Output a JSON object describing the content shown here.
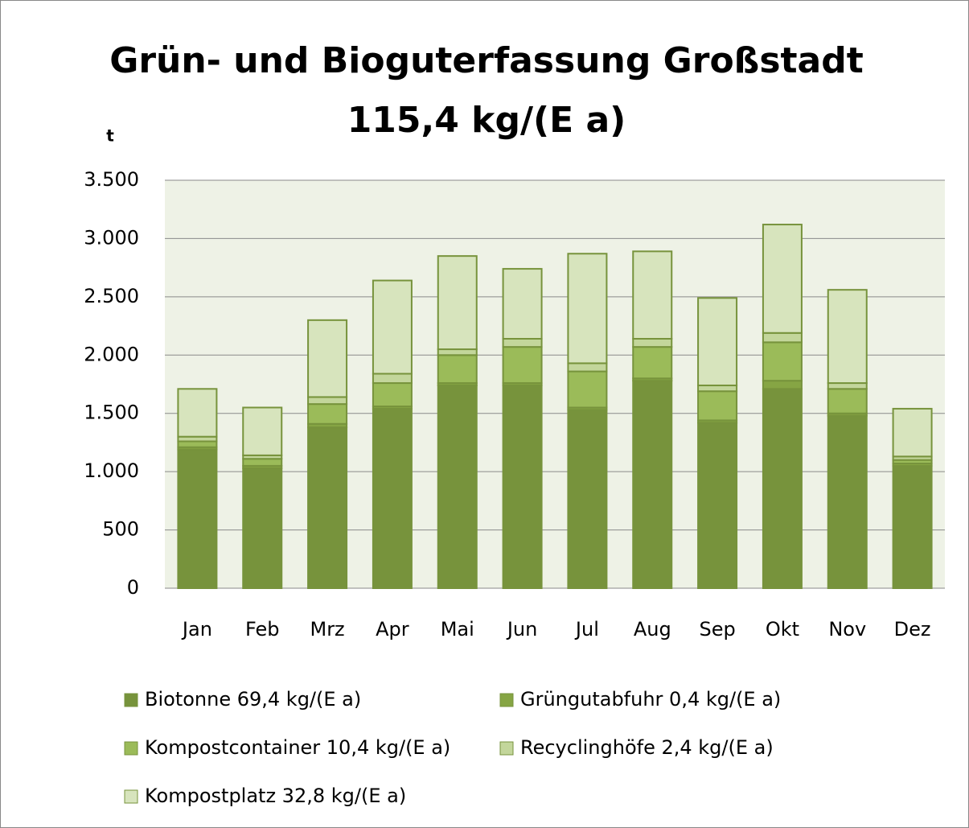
{
  "chart_data": {
    "type": "stacked_bar",
    "title": "Grün- und Bioguterfassung Großstadt",
    "subtitle": "115,4 kg/(E a)",
    "y_label": "t",
    "categories": [
      "Jan",
      "Feb",
      "Mrz",
      "Apr",
      "Mai",
      "Jun",
      "Jul",
      "Aug",
      "Sep",
      "Okt",
      "Nov",
      "Dez"
    ],
    "series": [
      {
        "name": "Biotonne 69,4 kg/(E a)",
        "color": "#77933c",
        "values": [
          1190,
          1030,
          1380,
          1540,
          1740,
          1740,
          1530,
          1780,
          1420,
          1710,
          1480,
          1050
        ]
      },
      {
        "name": "Grüngutabfuhr 0,4 kg/(E a)",
        "color": "#86a544",
        "values": [
          20,
          20,
          30,
          20,
          20,
          20,
          20,
          20,
          20,
          70,
          20,
          20
        ]
      },
      {
        "name": "Kompostcontainer 10,4 kg/(E a)",
        "color": "#9bbb59",
        "values": [
          50,
          60,
          170,
          200,
          240,
          310,
          310,
          270,
          250,
          330,
          210,
          30
        ]
      },
      {
        "name": "Recyclinghöfe 2,4 kg/(E a)",
        "color": "#c3d69b",
        "values": [
          40,
          30,
          60,
          80,
          50,
          70,
          70,
          70,
          50,
          80,
          50,
          30
        ]
      },
      {
        "name": "Kompostplatz 32,8 kg/(E a)",
        "color": "#d7e4bd",
        "values": [
          410,
          410,
          660,
          800,
          800,
          600,
          940,
          750,
          750,
          930,
          800,
          410
        ]
      }
    ],
    "ylim": [
      0,
      3500
    ],
    "yticks": [
      0,
      500,
      {
        "value": 1000,
        "label": "1.000"
      },
      {
        "value": 1500,
        "label": "1.500"
      },
      {
        "value": 2000,
        "label": "2.000"
      },
      {
        "value": 2500,
        "label": "2.500"
      },
      {
        "value": 3000,
        "label": "3.000"
      },
      {
        "value": 3500,
        "label": "3.500"
      }
    ],
    "grid": true
  }
}
